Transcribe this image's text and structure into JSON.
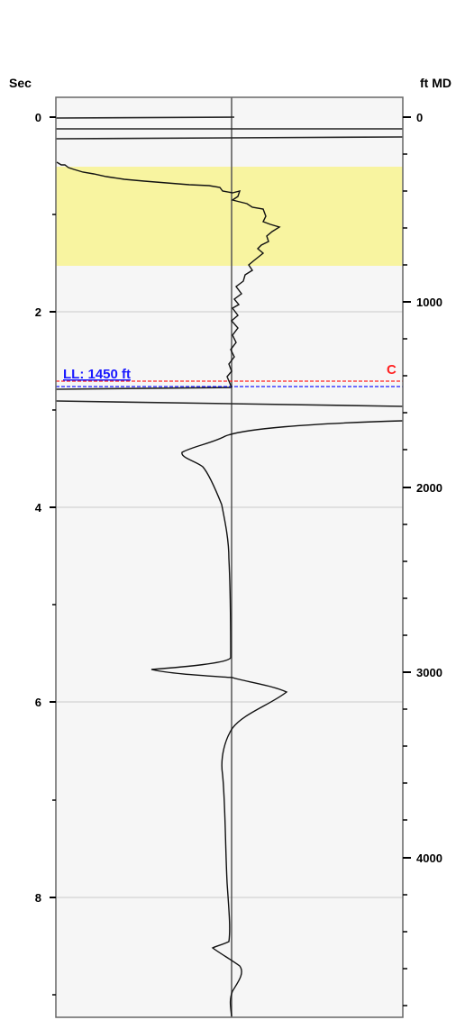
{
  "chart_data": {
    "type": "line",
    "left_axis": {
      "label": "Sec",
      "ticks": [
        "0",
        "2",
        "4",
        "6",
        "8"
      ],
      "range": [
        0,
        9.2
      ]
    },
    "right_axis": {
      "label": "ft MD",
      "ticks": [
        "0",
        "1000",
        "2000",
        "3000",
        "4000"
      ]
    },
    "highlight_band": {
      "from_sec": 0.5,
      "to_sec": 1.52,
      "color": "#f8f4a0"
    },
    "annotations": [
      {
        "text": "LL: 1450 ft",
        "color": "#1a1aff",
        "at_sec": 2.8
      },
      {
        "text": "C",
        "color": "#ff2222",
        "at_sec": 2.7
      }
    ],
    "reference_lines": [
      {
        "style": "dashed",
        "color": "#ff2222",
        "at_sec": 2.7
      },
      {
        "style": "dashed",
        "color": "#1a1aff",
        "at_sec": 2.8
      }
    ],
    "grid": true
  }
}
